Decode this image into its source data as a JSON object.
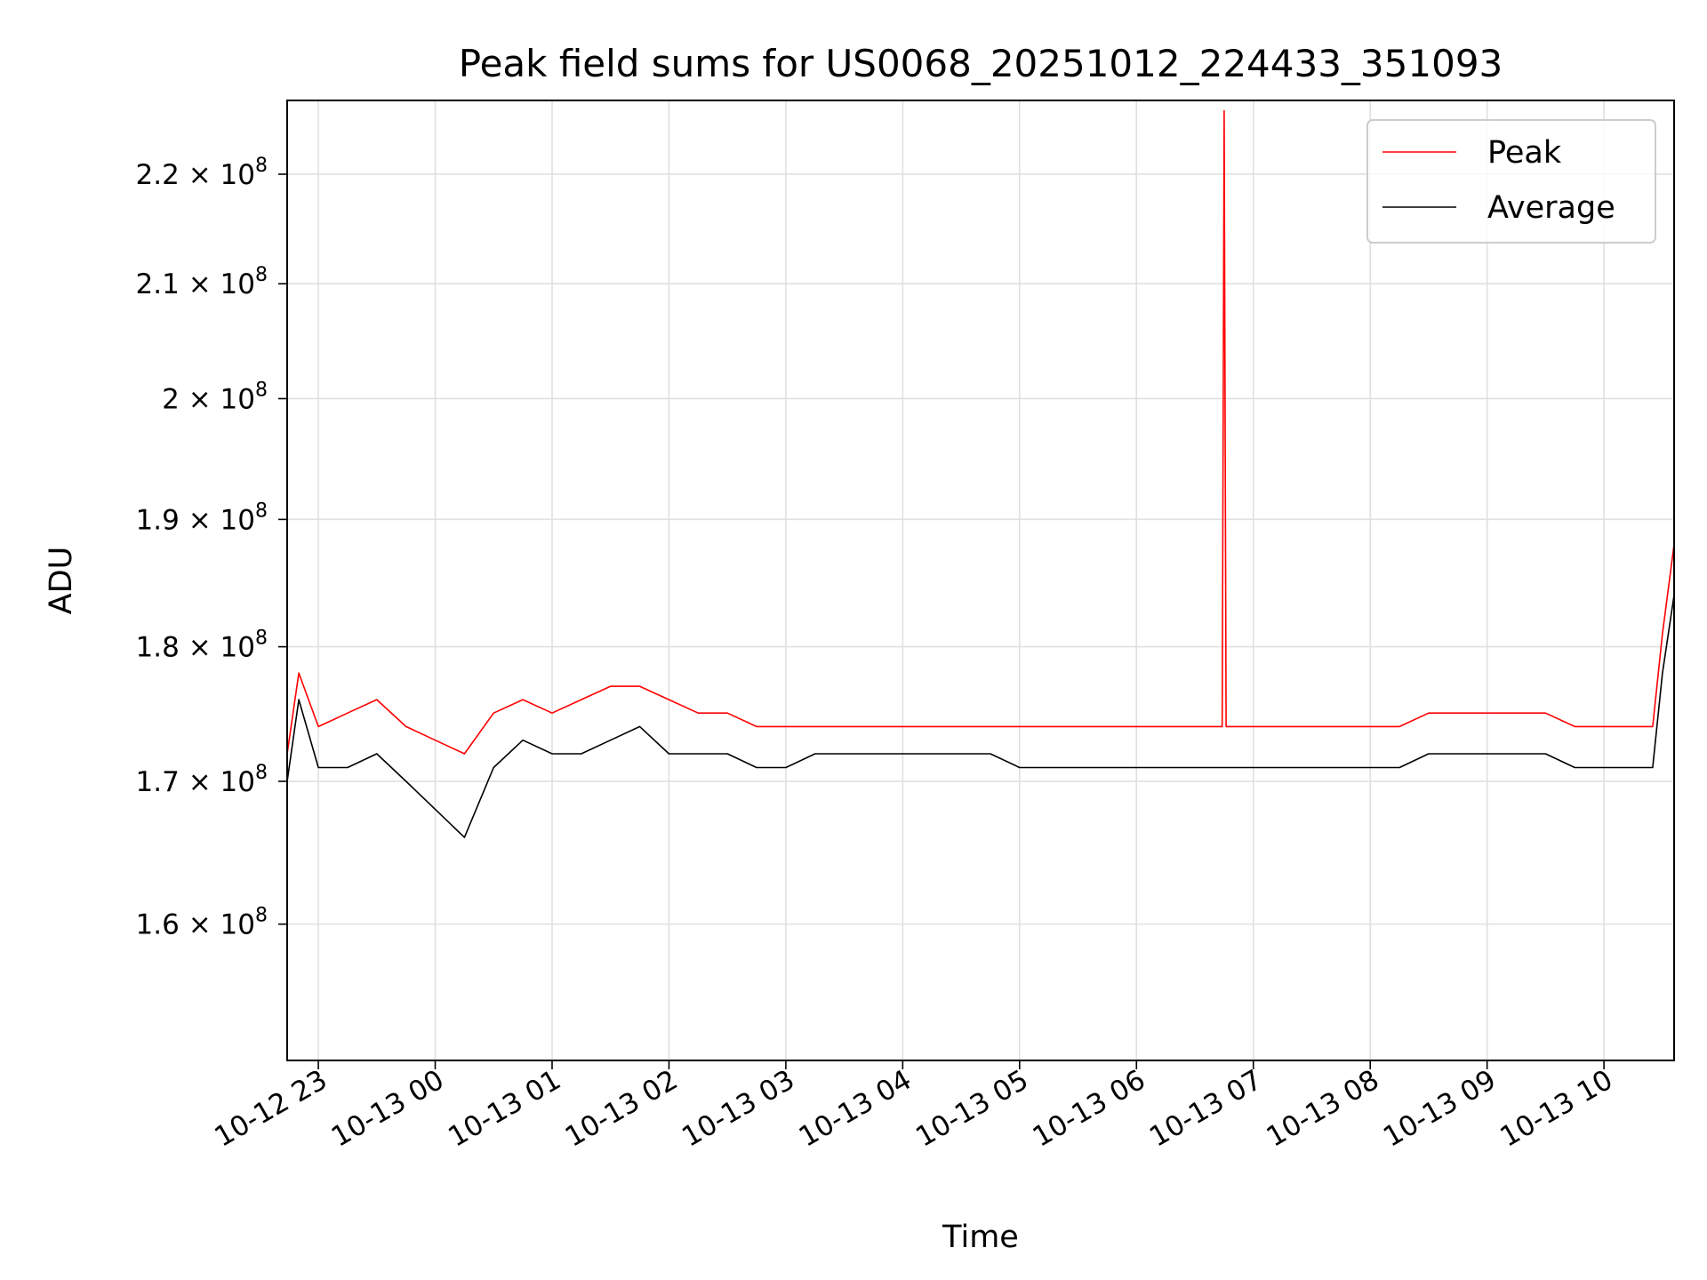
{
  "chart_data": {
    "type": "line",
    "title": "Peak field sums for US0068_20251012_224433_351093",
    "xlabel": "Time",
    "ylabel": "ADU",
    "y_scale": "log",
    "xlim": [
      "2025-10-12 22:44",
      "2025-10-13 10:36"
    ],
    "ylim": [
      151000000,
      227000000
    ],
    "x_ticks": [
      "2025-10-12 23:00",
      "2025-10-13 00:00",
      "2025-10-13 01:00",
      "2025-10-13 02:00",
      "2025-10-13 03:00",
      "2025-10-13 04:00",
      "2025-10-13 05:00",
      "2025-10-13 06:00",
      "2025-10-13 07:00",
      "2025-10-13 08:00",
      "2025-10-13 09:00",
      "2025-10-13 10:00"
    ],
    "x_tick_labels": [
      "10-12 23",
      "10-13 00",
      "10-13 01",
      "10-13 02",
      "10-13 03",
      "10-13 04",
      "10-13 05",
      "10-13 06",
      "10-13 07",
      "10-13 08",
      "10-13 09",
      "10-13 10"
    ],
    "y_ticks": [
      160000000,
      170000000,
      180000000,
      190000000,
      200000000,
      210000000,
      220000000
    ],
    "y_tick_mantissas": [
      "1.6",
      "1.7",
      "1.8",
      "1.9",
      "2",
      "2.1",
      "2.2"
    ],
    "y_tick_exponent": "8",
    "grid": true,
    "legend_position": "top-right",
    "series": [
      {
        "name": "Peak",
        "color": "#ff0000",
        "x": [
          "2025-10-12 22:44",
          "2025-10-12 22:50",
          "2025-10-12 23:00",
          "2025-10-12 23:15",
          "2025-10-12 23:30",
          "2025-10-12 23:45",
          "2025-10-13 00:00",
          "2025-10-13 00:15",
          "2025-10-13 00:30",
          "2025-10-13 00:45",
          "2025-10-13 01:00",
          "2025-10-13 01:15",
          "2025-10-13 01:30",
          "2025-10-13 01:45",
          "2025-10-13 02:00",
          "2025-10-13 02:15",
          "2025-10-13 02:30",
          "2025-10-13 02:45",
          "2025-10-13 03:00",
          "2025-10-13 03:15",
          "2025-10-13 03:30",
          "2025-10-13 03:45",
          "2025-10-13 04:00",
          "2025-10-13 04:15",
          "2025-10-13 04:30",
          "2025-10-13 04:45",
          "2025-10-13 05:00",
          "2025-10-13 05:15",
          "2025-10-13 05:30",
          "2025-10-13 05:45",
          "2025-10-13 06:00",
          "2025-10-13 06:15",
          "2025-10-13 06:30",
          "2025-10-13 06:44",
          "2025-10-13 06:45",
          "2025-10-13 06:46",
          "2025-10-13 07:00",
          "2025-10-13 07:15",
          "2025-10-13 07:30",
          "2025-10-13 07:45",
          "2025-10-13 08:00",
          "2025-10-13 08:15",
          "2025-10-13 08:30",
          "2025-10-13 08:45",
          "2025-10-13 09:00",
          "2025-10-13 09:15",
          "2025-10-13 09:30",
          "2025-10-13 09:45",
          "2025-10-13 10:00",
          "2025-10-13 10:15",
          "2025-10-13 10:25",
          "2025-10-13 10:30",
          "2025-10-13 10:36"
        ],
        "values": [
          172000000,
          178000000,
          174000000,
          175000000,
          176000000,
          174000000,
          173000000,
          172000000,
          175000000,
          176000000,
          175000000,
          176000000,
          177000000,
          177000000,
          176000000,
          175000000,
          175000000,
          174000000,
          174000000,
          174000000,
          174000000,
          174000000,
          174000000,
          174000000,
          174000000,
          174000000,
          174000000,
          174000000,
          174000000,
          174000000,
          174000000,
          174000000,
          174000000,
          174000000,
          226000000,
          174000000,
          174000000,
          174000000,
          174000000,
          174000000,
          174000000,
          174000000,
          175000000,
          175000000,
          175000000,
          175000000,
          175000000,
          174000000,
          174000000,
          174000000,
          174000000,
          181000000,
          188000000
        ]
      },
      {
        "name": "Average",
        "color": "#000000",
        "x": [
          "2025-10-12 22:44",
          "2025-10-12 22:50",
          "2025-10-12 23:00",
          "2025-10-12 23:15",
          "2025-10-12 23:30",
          "2025-10-12 23:45",
          "2025-10-13 00:00",
          "2025-10-13 00:15",
          "2025-10-13 00:30",
          "2025-10-13 00:45",
          "2025-10-13 01:00",
          "2025-10-13 01:15",
          "2025-10-13 01:30",
          "2025-10-13 01:45",
          "2025-10-13 02:00",
          "2025-10-13 02:15",
          "2025-10-13 02:30",
          "2025-10-13 02:45",
          "2025-10-13 03:00",
          "2025-10-13 03:15",
          "2025-10-13 03:30",
          "2025-10-13 03:45",
          "2025-10-13 04:00",
          "2025-10-13 04:15",
          "2025-10-13 04:30",
          "2025-10-13 04:45",
          "2025-10-13 05:00",
          "2025-10-13 05:15",
          "2025-10-13 05:30",
          "2025-10-13 05:45",
          "2025-10-13 06:00",
          "2025-10-13 06:15",
          "2025-10-13 06:30",
          "2025-10-13 06:45",
          "2025-10-13 07:00",
          "2025-10-13 07:15",
          "2025-10-13 07:30",
          "2025-10-13 07:45",
          "2025-10-13 08:00",
          "2025-10-13 08:15",
          "2025-10-13 08:30",
          "2025-10-13 08:45",
          "2025-10-13 09:00",
          "2025-10-13 09:15",
          "2025-10-13 09:30",
          "2025-10-13 09:45",
          "2025-10-13 10:00",
          "2025-10-13 10:15",
          "2025-10-13 10:25",
          "2025-10-13 10:30",
          "2025-10-13 10:36"
        ],
        "values": [
          170000000,
          176000000,
          171000000,
          171000000,
          172000000,
          170000000,
          168000000,
          166000000,
          171000000,
          173000000,
          172000000,
          172000000,
          173000000,
          174000000,
          172000000,
          172000000,
          172000000,
          171000000,
          171000000,
          172000000,
          172000000,
          172000000,
          172000000,
          172000000,
          172000000,
          172000000,
          171000000,
          171000000,
          171000000,
          171000000,
          171000000,
          171000000,
          171000000,
          171000000,
          171000000,
          171000000,
          171000000,
          171000000,
          171000000,
          171000000,
          172000000,
          172000000,
          172000000,
          172000000,
          172000000,
          171000000,
          171000000,
          171000000,
          171000000,
          178000000,
          184000000
        ]
      }
    ]
  }
}
